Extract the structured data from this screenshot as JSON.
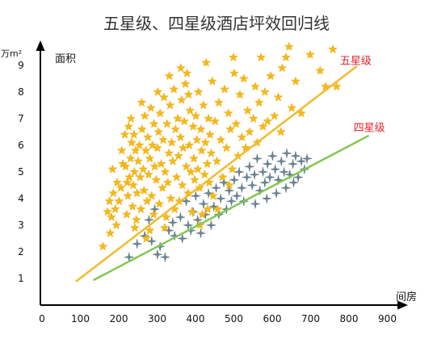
{
  "chart_data": {
    "type": "scatter",
    "title": "五星级、四星级酒店坪效回归线",
    "xlabel": "间房",
    "ylabel": "面积",
    "yunit": "万m²",
    "xlim": [
      0,
      950
    ],
    "ylim": [
      0,
      9.8
    ],
    "x_ticks": [
      0,
      100,
      200,
      300,
      400,
      500,
      600,
      700,
      800,
      900
    ],
    "y_ticks": [
      1,
      2,
      3,
      4,
      5,
      6,
      7,
      8,
      9
    ],
    "grid": false,
    "legend": "inline labels at line ends",
    "label_color": "#e5262b",
    "series": [
      {
        "name": "五星级",
        "marker": "five-point-star",
        "color": "#f6b918",
        "trend_color": "#f2bb2e",
        "trend": [
          [
            94,
            0.9
          ],
          [
            823,
            8.95
          ]
        ],
        "points": [
          [
            163,
            2.2
          ],
          [
            182,
            2.7
          ],
          [
            175,
            3.5
          ],
          [
            180,
            3.9
          ],
          [
            185,
            3.3
          ],
          [
            190,
            4.2
          ],
          [
            195,
            3.6
          ],
          [
            200,
            4.6
          ],
          [
            188,
            5.1
          ],
          [
            205,
            3.9
          ],
          [
            210,
            4.4
          ],
          [
            215,
            5.3
          ],
          [
            220,
            6.4
          ],
          [
            212,
            5.8
          ],
          [
            198,
            3.0
          ],
          [
            225,
            3.4
          ],
          [
            228,
            4.1
          ],
          [
            232,
            4.8
          ],
          [
            235,
            5.5
          ],
          [
            238,
            6.1
          ],
          [
            240,
            3.7
          ],
          [
            242,
            4.5
          ],
          [
            245,
            5.0
          ],
          [
            248,
            5.8
          ],
          [
            230,
            6.7
          ],
          [
            236,
            7.0
          ],
          [
            244,
            6.4
          ],
          [
            250,
            3.2
          ],
          [
            222,
            5.2
          ],
          [
            226,
            4.6
          ],
          [
            246,
            2.9
          ],
          [
            252,
            4.2
          ],
          [
            255,
            5.4
          ],
          [
            258,
            6.0
          ],
          [
            260,
            4.8
          ],
          [
            262,
            3.6
          ],
          [
            265,
            6.6
          ],
          [
            268,
            5.1
          ],
          [
            270,
            4.3
          ],
          [
            272,
            7.1
          ],
          [
            275,
            5.8
          ],
          [
            278,
            3.9
          ],
          [
            280,
            6.3
          ],
          [
            282,
            4.9
          ],
          [
            285,
            5.5
          ],
          [
            288,
            7.4
          ],
          [
            290,
            4.1
          ],
          [
            292,
            6.0
          ],
          [
            295,
            3.4
          ],
          [
            298,
            5.2
          ],
          [
            285,
            2.8
          ],
          [
            296,
            6.8
          ],
          [
            264,
            7.6
          ],
          [
            276,
            2.5
          ],
          [
            302,
            4.7
          ],
          [
            305,
            5.9
          ],
          [
            308,
            6.5
          ],
          [
            310,
            3.8
          ],
          [
            312,
            7.2
          ],
          [
            315,
            5.3
          ],
          [
            318,
            4.4
          ],
          [
            320,
            6.2
          ],
          [
            322,
            7.8
          ],
          [
            325,
            5.0
          ],
          [
            328,
            3.3
          ],
          [
            330,
            6.8
          ],
          [
            332,
            4.6
          ],
          [
            335,
            5.7
          ],
          [
            338,
            7.5
          ],
          [
            340,
            4.0
          ],
          [
            342,
            6.1
          ],
          [
            345,
            5.4
          ],
          [
            348,
            8.1
          ],
          [
            350,
            3.6
          ],
          [
            306,
            8.0
          ],
          [
            336,
            8.6
          ],
          [
            324,
            2.9
          ],
          [
            352,
            6.6
          ],
          [
            355,
            4.8
          ],
          [
            358,
            7.0
          ],
          [
            360,
            5.6
          ],
          [
            362,
            3.9
          ],
          [
            365,
            6.3
          ],
          [
            368,
            7.7
          ],
          [
            370,
            4.5
          ],
          [
            372,
            5.9
          ],
          [
            375,
            6.9
          ],
          [
            378,
            8.3
          ],
          [
            380,
            5.2
          ],
          [
            382,
            8.7
          ],
          [
            385,
            4.2
          ],
          [
            388,
            6.0
          ],
          [
            390,
            7.3
          ],
          [
            392,
            5.0
          ],
          [
            395,
            3.5
          ],
          [
            398,
            6.7
          ],
          [
            400,
            5.5
          ],
          [
            366,
            8.9
          ],
          [
            386,
            7.9
          ],
          [
            402,
            4.7
          ],
          [
            405,
            7.1
          ],
          [
            408,
            6.2
          ],
          [
            410,
            5.1
          ],
          [
            412,
            8.0
          ],
          [
            415,
            4.4
          ],
          [
            418,
            6.6
          ],
          [
            420,
            5.8
          ],
          [
            422,
            3.4
          ],
          [
            425,
            7.5
          ],
          [
            428,
            4.9
          ],
          [
            430,
            6.1
          ],
          [
            432,
            9.1
          ],
          [
            435,
            5.3
          ],
          [
            438,
            7.0
          ],
          [
            440,
            4.6
          ],
          [
            442,
            6.4
          ],
          [
            445,
            5.7
          ],
          [
            448,
            8.4
          ],
          [
            450,
            4.1
          ],
          [
            416,
            3.0
          ],
          [
            436,
            3.6
          ],
          [
            455,
            6.9
          ],
          [
            460,
            5.4
          ],
          [
            465,
            7.6
          ],
          [
            470,
            6.2
          ],
          [
            475,
            4.8
          ],
          [
            480,
            8.1
          ],
          [
            485,
            5.9
          ],
          [
            490,
            7.2
          ],
          [
            495,
            6.6
          ],
          [
            500,
            5.1
          ],
          [
            503,
            9.3
          ],
          [
            505,
            8.7
          ],
          [
            510,
            6.8
          ],
          [
            515,
            5.6
          ],
          [
            520,
            7.9
          ],
          [
            525,
            6.3
          ],
          [
            530,
            8.5
          ],
          [
            535,
            5.9
          ],
          [
            540,
            7.3
          ],
          [
            545,
            6.5
          ],
          [
            462,
            3.6
          ],
          [
            492,
            4.5
          ],
          [
            555,
            7.0
          ],
          [
            560,
            8.2
          ],
          [
            565,
            6.1
          ],
          [
            570,
            7.6
          ],
          [
            575,
            9.3
          ],
          [
            580,
            6.7
          ],
          [
            585,
            8.0
          ],
          [
            592,
            6.9
          ],
          [
            600,
            8.6
          ],
          [
            610,
            7.1
          ],
          [
            620,
            7.8
          ],
          [
            627,
            6.5
          ],
          [
            630,
            8.9
          ],
          [
            640,
            9.3
          ],
          [
            648,
            9.7
          ],
          [
            655,
            7.4
          ],
          [
            665,
            8.4
          ],
          [
            680,
            7.2
          ],
          [
            703,
            9.4
          ],
          [
            729,
            8.8
          ],
          [
            743,
            8.2
          ],
          [
            762,
            9.6
          ],
          [
            772,
            8.2
          ]
        ]
      },
      {
        "name": "四星级",
        "marker": "four-point-star",
        "color": "#6b8796",
        "trend_color": "#80c850",
        "trend": [
          [
            140,
            0.95
          ],
          [
            854,
            6.35
          ]
        ],
        "points": [
          [
            231,
            1.8
          ],
          [
            252,
            2.3
          ],
          [
            272,
            2.6
          ],
          [
            283,
            3.2
          ],
          [
            290,
            2.4
          ],
          [
            298,
            3.6
          ],
          [
            305,
            1.9
          ],
          [
            312,
            2.2
          ],
          [
            325,
            1.8
          ],
          [
            335,
            2.8
          ],
          [
            345,
            3.1
          ],
          [
            350,
            2.6
          ],
          [
            365,
            3.3
          ],
          [
            370,
            2.5
          ],
          [
            380,
            3.9
          ],
          [
            385,
            3.0
          ],
          [
            392,
            2.8
          ],
          [
            398,
            3.5
          ],
          [
            405,
            4.1
          ],
          [
            410,
            3.2
          ],
          [
            418,
            2.7
          ],
          [
            425,
            3.8
          ],
          [
            430,
            3.4
          ],
          [
            438,
            4.2
          ],
          [
            445,
            3.0
          ],
          [
            452,
            3.7
          ],
          [
            458,
            4.4
          ],
          [
            465,
            3.4
          ],
          [
            470,
            4.0
          ],
          [
            478,
            4.6
          ],
          [
            485,
            3.6
          ],
          [
            492,
            4.3
          ],
          [
            498,
            3.9
          ],
          [
            505,
            4.7
          ],
          [
            512,
            4.1
          ],
          [
            518,
            5.0
          ],
          [
            525,
            4.4
          ],
          [
            530,
            3.9
          ],
          [
            538,
            4.8
          ],
          [
            545,
            5.2
          ],
          [
            552,
            4.5
          ],
          [
            558,
            4.9
          ],
          [
            565,
            5.5
          ],
          [
            572,
            4.3
          ],
          [
            580,
            5.0
          ],
          [
            585,
            4.6
          ],
          [
            592,
            5.3
          ],
          [
            598,
            4.8
          ],
          [
            605,
            5.6
          ],
          [
            612,
            5.1
          ],
          [
            620,
            4.7
          ],
          [
            628,
            5.4
          ],
          [
            635,
            5.0
          ],
          [
            642,
            5.7
          ],
          [
            650,
            4.9
          ],
          [
            658,
            5.3
          ],
          [
            665,
            5.6
          ],
          [
            672,
            4.8
          ],
          [
            680,
            5.4
          ],
          [
            688,
            5.1
          ],
          [
            695,
            5.5
          ],
          [
            660,
            4.6
          ],
          [
            640,
            4.4
          ],
          [
            615,
            4.2
          ],
          [
            590,
            4.0
          ],
          [
            560,
            3.8
          ]
        ]
      }
    ]
  }
}
